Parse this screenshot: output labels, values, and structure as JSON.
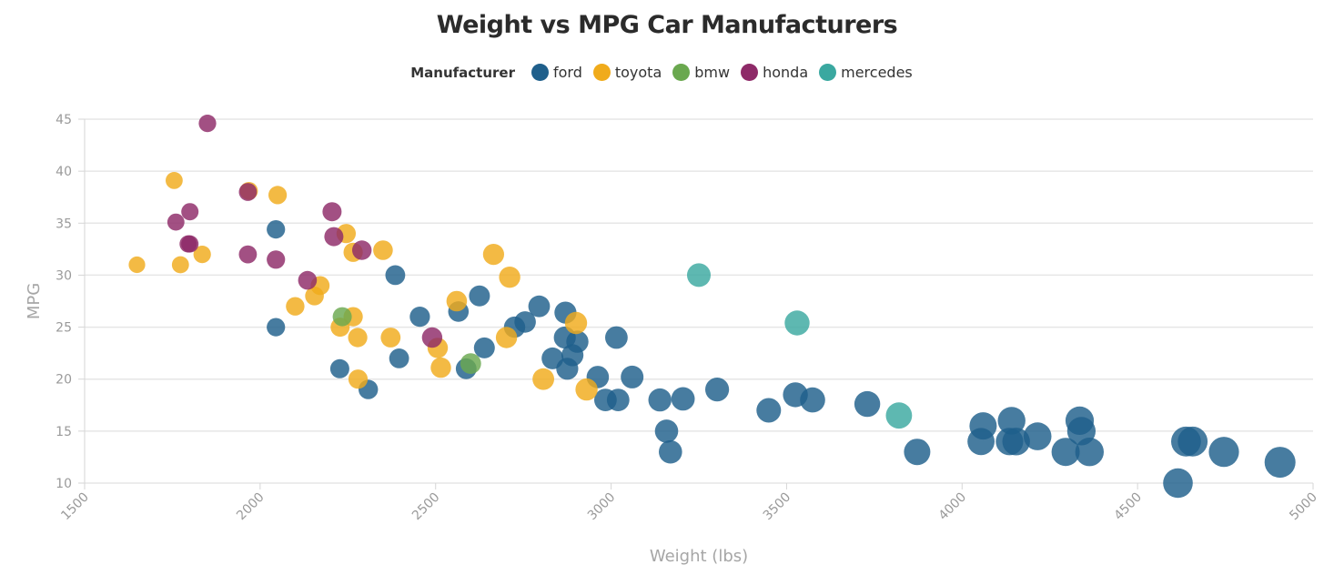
{
  "chart_data": {
    "type": "scatter",
    "title": "Weight vs MPG Car Manufacturers",
    "xlabel": "Weight (lbs)",
    "ylabel": "MPG",
    "xlim": [
      1500,
      5000
    ],
    "ylim": [
      10,
      45
    ],
    "xticks": [
      1500,
      2000,
      2500,
      3000,
      3500,
      4000,
      4500,
      5000
    ],
    "yticks": [
      10,
      15,
      20,
      25,
      30,
      35,
      40,
      45
    ],
    "grid": "horizontal",
    "legend": {
      "title": "Manufacturer",
      "placement": "top-center"
    },
    "bubble_size_by": "weight",
    "series": [
      {
        "name": "ford",
        "color": "#1f5f8b",
        "points": [
          [
            2045,
            34.4
          ],
          [
            2045,
            25
          ],
          [
            2227,
            21
          ],
          [
            2308,
            19
          ],
          [
            2385,
            30
          ],
          [
            2396,
            22
          ],
          [
            2455,
            26
          ],
          [
            2565,
            26.5
          ],
          [
            2587,
            21
          ],
          [
            2625,
            28
          ],
          [
            2639,
            23
          ],
          [
            2725,
            25
          ],
          [
            2755,
            25.5
          ],
          [
            2795,
            27
          ],
          [
            2833,
            22
          ],
          [
            2868,
            24
          ],
          [
            2870,
            26.4
          ],
          [
            2875,
            21
          ],
          [
            2890,
            22.3
          ],
          [
            2904,
            23.6
          ],
          [
            2962,
            20.2
          ],
          [
            2984,
            18
          ],
          [
            3015,
            24
          ],
          [
            3020,
            18
          ],
          [
            3060,
            20.2
          ],
          [
            3139,
            18
          ],
          [
            3158,
            15
          ],
          [
            3169,
            13
          ],
          [
            3205,
            18.1
          ],
          [
            3302,
            19
          ],
          [
            3449,
            17
          ],
          [
            3525,
            18.5
          ],
          [
            3574,
            18
          ],
          [
            3730,
            17.6
          ],
          [
            3872,
            13
          ],
          [
            4054,
            14
          ],
          [
            4060,
            15.5
          ],
          [
            4135,
            14
          ],
          [
            4141,
            16
          ],
          [
            4154,
            14
          ],
          [
            4215,
            14.5
          ],
          [
            4295,
            13
          ],
          [
            4335,
            16
          ],
          [
            4340,
            15
          ],
          [
            4363,
            13
          ],
          [
            4615,
            10
          ],
          [
            4638,
            14
          ],
          [
            4657,
            14
          ],
          [
            4746,
            13
          ],
          [
            4906,
            12
          ]
        ]
      },
      {
        "name": "toyota",
        "color": "#f0ab1b",
        "points": [
          [
            1649,
            31
          ],
          [
            1755,
            39.1
          ],
          [
            1773,
            31
          ],
          [
            1835,
            32
          ],
          [
            1968,
            38.1
          ],
          [
            2050,
            37.7
          ],
          [
            2100,
            27
          ],
          [
            2155,
            28
          ],
          [
            2171,
            29
          ],
          [
            2228,
            25
          ],
          [
            2245,
            34
          ],
          [
            2265,
            32.2
          ],
          [
            2265,
            26
          ],
          [
            2278,
            24
          ],
          [
            2279,
            20
          ],
          [
            2350,
            32.4
          ],
          [
            2372,
            24
          ],
          [
            2506,
            23
          ],
          [
            2515,
            21.1
          ],
          [
            2560,
            27.5
          ],
          [
            2665,
            32
          ],
          [
            2702,
            24
          ],
          [
            2711,
            29.8
          ],
          [
            2807,
            20
          ],
          [
            2900,
            25.4
          ],
          [
            2930,
            19
          ]
        ]
      },
      {
        "name": "bmw",
        "color": "#6aa84f",
        "points": [
          [
            2234,
            26
          ],
          [
            2600,
            21.5
          ]
        ]
      },
      {
        "name": "honda",
        "color": "#8e2a68",
        "points": [
          [
            1760,
            35.1
          ],
          [
            1795,
            33
          ],
          [
            1800,
            36.1
          ],
          [
            1800,
            33
          ],
          [
            1850,
            44.6
          ],
          [
            1965,
            32
          ],
          [
            1965,
            38
          ],
          [
            2045,
            31.5
          ],
          [
            2135,
            29.5
          ],
          [
            2205,
            36.1
          ],
          [
            2210,
            33.7
          ],
          [
            2290,
            32.4
          ],
          [
            2490,
            24
          ]
        ]
      },
      {
        "name": "mercedes",
        "color": "#3aa8a0",
        "points": [
          [
            3250,
            30
          ],
          [
            3530,
            25.4
          ],
          [
            3820,
            16.5
          ]
        ]
      }
    ]
  }
}
